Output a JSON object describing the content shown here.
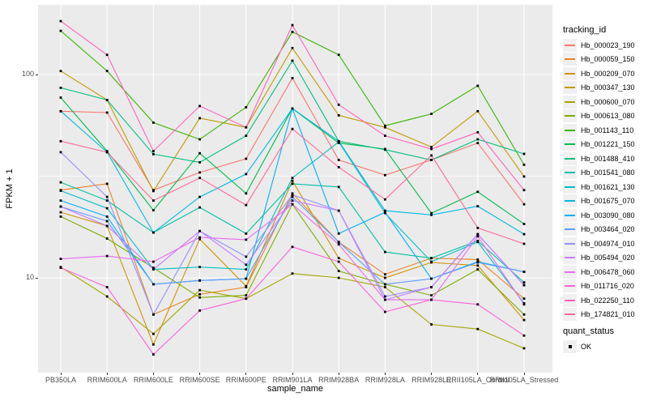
{
  "figure": {
    "background": "#FFFFFF",
    "panel_background": "#EBEBEB",
    "grid_color": "#FFFFFF",
    "tick_color": "#333333",
    "tick_label_color": "#4D4D4D",
    "point_color": "#000000"
  },
  "axes": {
    "x_title": "sample_name",
    "y_title": "FPKM + 1"
  },
  "legend": {
    "tracking_title": "tracking_id",
    "quant_title": "quant_status",
    "quant_ok_label": "OK"
  },
  "chart_data": {
    "type": "line",
    "title": "",
    "xlabel": "sample_name",
    "ylabel": "FPKM + 1",
    "y_scale": "log10",
    "y_major_ticks": [
      10,
      100
    ],
    "y_minor_ticks": [
      31.6
    ],
    "ylim_approx": [
      3.6,
      215
    ],
    "grid": "on",
    "legend_position": "right",
    "point_marker": "filled-square",
    "point_status_label": "OK",
    "x_categories": [
      "PB350LA",
      "RRIM600LA",
      "RRIM600LE",
      "RRIM600SE",
      "RRIM600PE",
      "RRIM901LA",
      "RRIM928BA",
      "RRIM928LA",
      "RRIM928LE",
      "RRII105LA_Control",
      "RRII105LA_Stressed"
    ],
    "series": [
      {
        "name": "Hb_000023_190",
        "color": "#F8766D",
        "values": [
          66,
          65,
          27,
          33,
          38.5,
          96,
          38,
          32,
          38,
          46,
          23
        ]
      },
      {
        "name": "Hb_000059_150",
        "color": "#E88526",
        "values": [
          27,
          29,
          6.6,
          8.3,
          9,
          26,
          15,
          10.4,
          12.5,
          12.3,
          7.9
        ]
      },
      {
        "name": "Hb_000209_070",
        "color": "#D39200",
        "values": [
          21,
          18,
          4.7,
          15.5,
          9.1,
          30,
          12.5,
          10,
          11.9,
          11.5,
          6.2
        ]
      },
      {
        "name": "Hb_000347_130",
        "color": "#C09B00",
        "values": [
          104,
          75,
          26.7,
          61,
          55,
          135,
          63,
          55,
          44,
          66,
          31.5
        ]
      },
      {
        "name": "Hb_000600_070",
        "color": "#A3A500",
        "values": [
          11.3,
          8.1,
          5.3,
          8.7,
          7.9,
          10.5,
          10,
          9,
          5.9,
          5.6,
          4.5
        ]
      },
      {
        "name": "Hb_000613_080",
        "color": "#7CAE00",
        "values": [
          20,
          15.6,
          11.2,
          8,
          8.2,
          23,
          10.8,
          9.3,
          8.2,
          11,
          6.6
        ]
      },
      {
        "name": "Hb_001143_110",
        "color": "#39B600",
        "values": [
          164,
          104,
          58,
          48,
          69,
          162,
          125,
          56,
          64,
          88,
          36
        ]
      },
      {
        "name": "Hb_001221_150",
        "color": "#00BB4E",
        "values": [
          77,
          42,
          21.5,
          41,
          26,
          68,
          46,
          43,
          20.8,
          26.5,
          18.4
        ]
      },
      {
        "name": "Hb_001488_410",
        "color": "#00BF7D",
        "values": [
          86,
          75,
          40.6,
          37,
          50,
          117,
          47,
          42.7,
          38,
          48,
          40.7
        ]
      },
      {
        "name": "Hb_001541_080",
        "color": "#00C1A3",
        "values": [
          29.5,
          24,
          16.7,
          22.2,
          16.5,
          29,
          28,
          13.4,
          12.5,
          15.2,
          9.5
        ]
      },
      {
        "name": "Hb_001621_130",
        "color": "#00BFC4",
        "values": [
          26.8,
          22,
          11,
          11.3,
          11,
          31,
          46.6,
          20.8,
          12,
          15,
          7.5
        ]
      },
      {
        "name": "Hb_001675_070",
        "color": "#00BAE0",
        "values": [
          66,
          41.5,
          16.7,
          25,
          32.4,
          68,
          47,
          21.4,
          20.4,
          22.5,
          16.4
        ]
      },
      {
        "name": "Hb_003090_080",
        "color": "#00B0F6",
        "values": [
          24,
          20,
          9.3,
          9.7,
          9.9,
          68,
          16.5,
          21,
          9.9,
          12,
          10.7
        ]
      },
      {
        "name": "Hb_003464_020",
        "color": "#619CFF",
        "values": [
          22.4,
          19,
          9.3,
          9.7,
          9.9,
          25,
          15,
          9.3,
          9.9,
          11.9,
          10.7
        ]
      },
      {
        "name": "Hb_004974_010",
        "color": "#9590FF",
        "values": [
          41.5,
          25,
          6.6,
          17,
          12.7,
          25.6,
          21.4,
          8.1,
          9,
          16.4,
          9.2
        ]
      },
      {
        "name": "Hb_005494_020",
        "color": "#C77CFF",
        "values": [
          22.4,
          18,
          11,
          17,
          11.6,
          24,
          21.4,
          7.8,
          9,
          16.4,
          9.2
        ]
      },
      {
        "name": "Hb_006478_060",
        "color": "#E76BF3",
        "values": [
          12.4,
          12.8,
          12,
          15.8,
          15.4,
          23,
          14.6,
          7.8,
          7.8,
          16,
          7.4
        ]
      },
      {
        "name": "Hb_011716_020",
        "color": "#FA62DB",
        "values": [
          11.2,
          9,
          4.2,
          6.9,
          7.9,
          14.2,
          12,
          6.8,
          7.8,
          7.4,
          5.2
        ]
      },
      {
        "name": "Hb_022250_110",
        "color": "#FF62BC",
        "values": [
          183,
          125,
          42,
          70,
          55,
          175,
          71,
          50,
          43,
          52,
          27
        ]
      },
      {
        "name": "Hb_174821_010",
        "color": "#FF6A98",
        "values": [
          47,
          41.5,
          24,
          31,
          22.8,
          54,
          35,
          24.3,
          40,
          17.6,
          14.7
        ]
      }
    ]
  }
}
